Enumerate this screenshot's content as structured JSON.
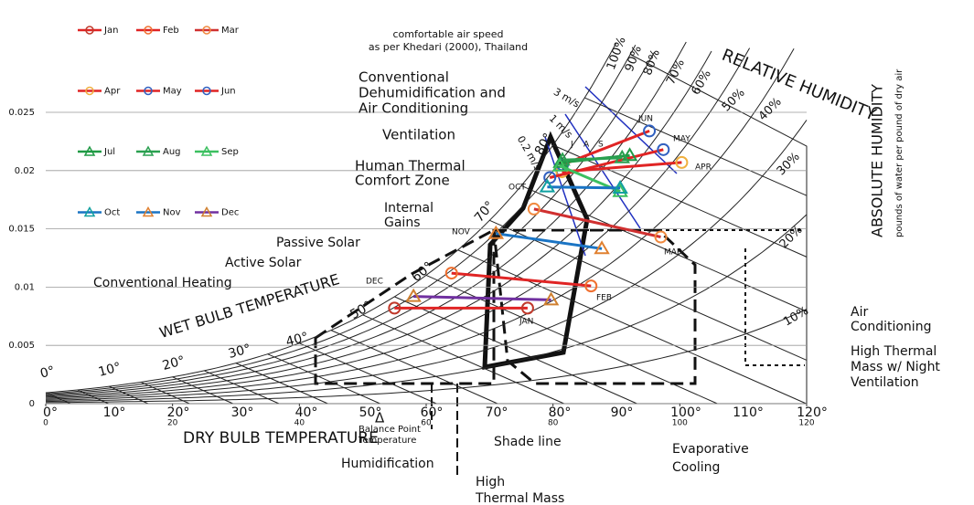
{
  "chart_data": {
    "type": "line",
    "ylim": [
      0,
      0.025
    ],
    "yticks": [
      0,
      0.005,
      0.01,
      0.015,
      0.02,
      0.025
    ],
    "xlim": [
      0,
      120
    ],
    "xticks": [
      0,
      20,
      40,
      60,
      80,
      100,
      120
    ],
    "grid": true,
    "series": [
      {
        "name": "Jan",
        "color": "#e02424",
        "marker": "circle",
        "marker_color": "#c0392b",
        "x": [
          55,
          76
        ],
        "values": [
          0.0082,
          0.0082
        ]
      },
      {
        "name": "Feb",
        "color": "#e02424",
        "marker": "circle",
        "marker_color": "#f07030",
        "x": [
          64,
          86
        ],
        "values": [
          0.0112,
          0.0101
        ]
      },
      {
        "name": "Mar",
        "color": "#d03030",
        "marker": "circle",
        "marker_color": "#f08a40",
        "x": [
          77,
          97
        ],
        "values": [
          0.0167,
          0.0143
        ]
      },
      {
        "name": "Apr",
        "color": "#e02424",
        "marker": "circle",
        "marker_color": "#f0b040",
        "x": [
          81.4,
          100.3
        ],
        "values": [
          0.0199,
          0.0207
        ]
      },
      {
        "name": "May",
        "color": "#e02424",
        "marker": "circle",
        "marker_color": "#3060c0",
        "x": [
          79.5,
          97.4
        ],
        "values": [
          0.0194,
          0.0218
        ]
      },
      {
        "name": "Jun",
        "color": "#e02424",
        "marker": "circle",
        "marker_color": "#3060c0",
        "x": [
          81.5,
          95.2
        ],
        "values": [
          0.0205,
          0.0234
        ]
      },
      {
        "name": "Jul",
        "color": "#1f9a44",
        "marker": "triangle",
        "marker_color": "#1f9a44",
        "x": [
          81.2,
          92.1
        ],
        "values": [
          0.0207,
          0.0213
        ]
      },
      {
        "name": "Aug",
        "color": "#2aa050",
        "marker": "triangle",
        "marker_color": "#2aa050",
        "x": [
          81.5,
          90.9
        ],
        "values": [
          0.0209,
          0.0211
        ]
      },
      {
        "name": "Sep",
        "color": "#3cc060",
        "marker": "triangle",
        "marker_color": "#3cc060",
        "x": [
          81.1,
          90.6
        ],
        "values": [
          0.0204,
          0.0182
        ]
      },
      {
        "name": "Oct",
        "color": "#1a74c4",
        "marker": "triangle",
        "marker_color": "#10a0a0",
        "x": [
          79.1,
          90.6
        ],
        "values": [
          0.0186,
          0.0185
        ]
      },
      {
        "name": "Nov",
        "color": "#1a74c4",
        "marker": "triangle",
        "marker_color": "#e08030",
        "x": [
          71,
          87.7
        ],
        "values": [
          0.0146,
          0.0133
        ]
      },
      {
        "name": "Dec",
        "color": "#7030a0",
        "marker": "triangle",
        "marker_color": "#d08030",
        "x": [
          58,
          79.7
        ],
        "values": [
          0.0092,
          0.0089
        ]
      }
    ],
    "annotations": [
      "RELATIVE HUMIDITY",
      "ABSOLUTE HUMIDITY",
      "pounds of water per pound of dry air",
      "WET BULB TEMPERATURE",
      "DRY BULB TEMPERATURE",
      "Conventional",
      "Dehumidification and",
      "Air Conditioning",
      "Ventilation",
      "Human Thermal",
      "Comfort Zone",
      "Internal",
      "Gains",
      "Passive Solar",
      "Active Solar",
      "Conventional Heating",
      "Balance Point",
      "Temperature",
      "Δ",
      "Humidification",
      "Shade line",
      "High",
      "Thermal Mass",
      "Evaporative",
      "Cooling",
      "Air",
      "Conditioning",
      "High Thermal",
      "Mass w/ Night",
      "Ventilation",
      "comfortable air speed",
      "as per Khedari (2000), Thailand",
      "3 m/s",
      "1 m/s",
      "0.2 m/s",
      "JAN",
      "FEB",
      "MAR",
      "APR",
      "MAY",
      "JUN",
      "J",
      "A",
      "S",
      "OCT",
      "NOV",
      "DEC",
      "100%",
      "90%",
      "80%",
      "70%",
      "60%",
      "50%",
      "40%",
      "30%",
      "20%",
      "10%",
      "0°",
      "10°",
      "20°",
      "30°",
      "40°",
      "50°",
      "60°",
      "70°",
      "80°",
      "0°",
      "10°",
      "20°",
      "30°",
      "40°",
      "50°",
      "60°",
      "70°",
      "80°",
      "90°",
      "100°",
      "110°",
      "120°"
    ]
  }
}
